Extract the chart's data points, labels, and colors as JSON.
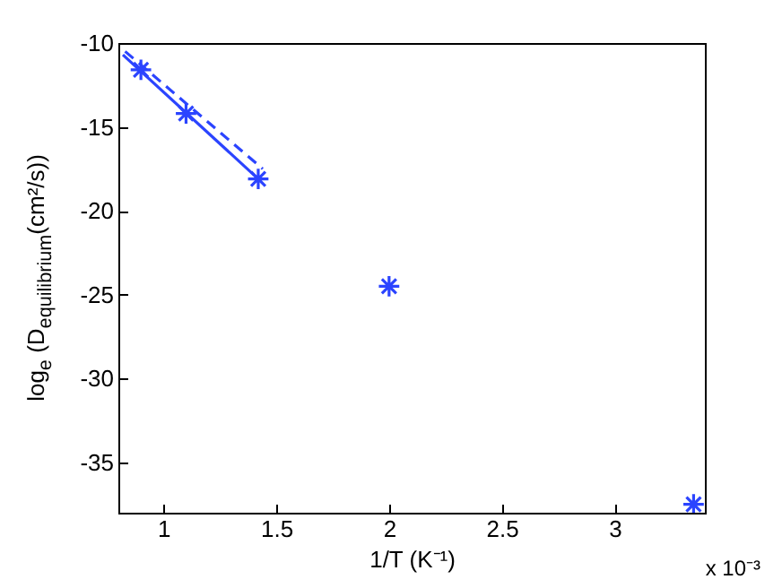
{
  "chart_data": {
    "type": "scatter",
    "xlabel": "1/T (K⁻¹)",
    "ylabel": "log$_{e}$ (D$_{equilibrium}$(cm²/s))",
    "xlim": [
      0.8,
      3.4
    ],
    "xticks": [
      1,
      1.5,
      2,
      2.5,
      3
    ],
    "ylim": [
      -38,
      -10
    ],
    "yticks": [
      -35,
      -30,
      -25,
      -20,
      -15,
      -10
    ],
    "grid": false,
    "annotations": [
      "x 10⁻³"
    ],
    "series": [
      {
        "color": "#2b44ff",
        "marker": "cross",
        "x": [
          0.9,
          1.1,
          1.42,
          2.0,
          3.35
        ],
        "values": [
          -11.6,
          -14.2,
          -18.1,
          -24.5,
          -37.5
        ]
      },
      {
        "type": "line",
        "color": "#2b44ff",
        "marker": "none",
        "line_style": "solid",
        "x": [
          0.82,
          1.42
        ],
        "values": [
          -10.7,
          -18.1
        ]
      },
      {
        "type": "line",
        "color": "#2b44ff",
        "marker": "none",
        "line_style": "dashed",
        "x": [
          0.83,
          1.44
        ],
        "values": [
          -10.5,
          -17.5
        ]
      }
    ]
  }
}
